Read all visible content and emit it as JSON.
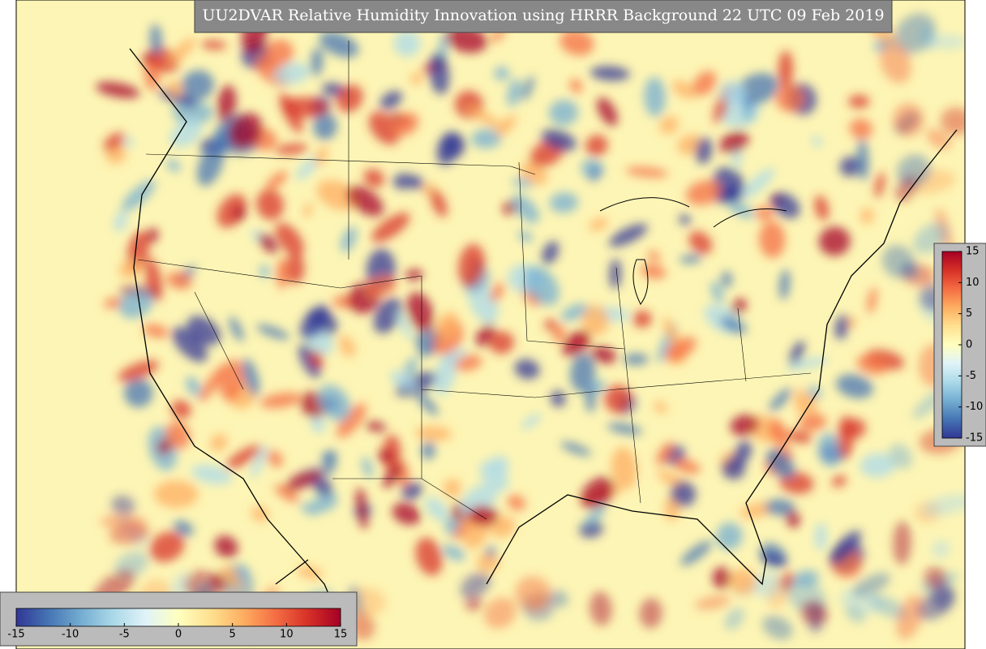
{
  "title": "UU2DVAR Relative Humidity Innovation using HRRR Background 22 UTC 09 Feb 2019",
  "colorbar": {
    "vmin": -15,
    "vmax": 15,
    "ticks": [
      -15,
      -10,
      -5,
      0,
      5,
      10,
      15
    ],
    "colors": [
      "#313695",
      "#4575b4",
      "#74add1",
      "#abd9e9",
      "#e0f3f8",
      "#ffffbf",
      "#fee090",
      "#fdae61",
      "#f46d43",
      "#d73027",
      "#a50026"
    ]
  }
}
